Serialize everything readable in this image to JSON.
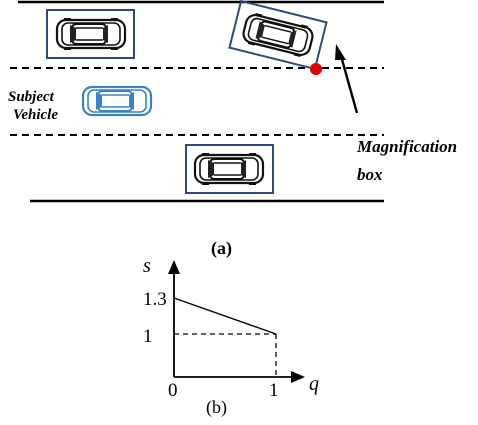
{
  "scene": {
    "subject_label_line1": "Subject",
    "subject_label_line2": "Vehicle",
    "annotation_line1": "Magnification",
    "annotation_line2": "box",
    "subject_color": "#3a82c8",
    "box_color": "#2e4a7a",
    "point_color": "#e00000",
    "caption": "(a)"
  },
  "chart": {
    "caption": "(b)",
    "xlabel": "q",
    "ylabel": "s",
    "x_ticks": [
      "0",
      "1"
    ],
    "y_ticks": [
      "1.3",
      "1"
    ]
  },
  "chart_data": {
    "type": "line",
    "x": [
      0,
      1
    ],
    "y": [
      1.3,
      1
    ],
    "xlabel": "q",
    "ylabel": "s",
    "x_tick_labels": [
      "0",
      "1"
    ],
    "y_tick_labels": [
      "1.3",
      "1"
    ],
    "reference_lines": [
      "dashed horizontal at s = 1 from q = 0 to 1",
      "dashed vertical at q = 1 from s = 0 to 1"
    ]
  }
}
